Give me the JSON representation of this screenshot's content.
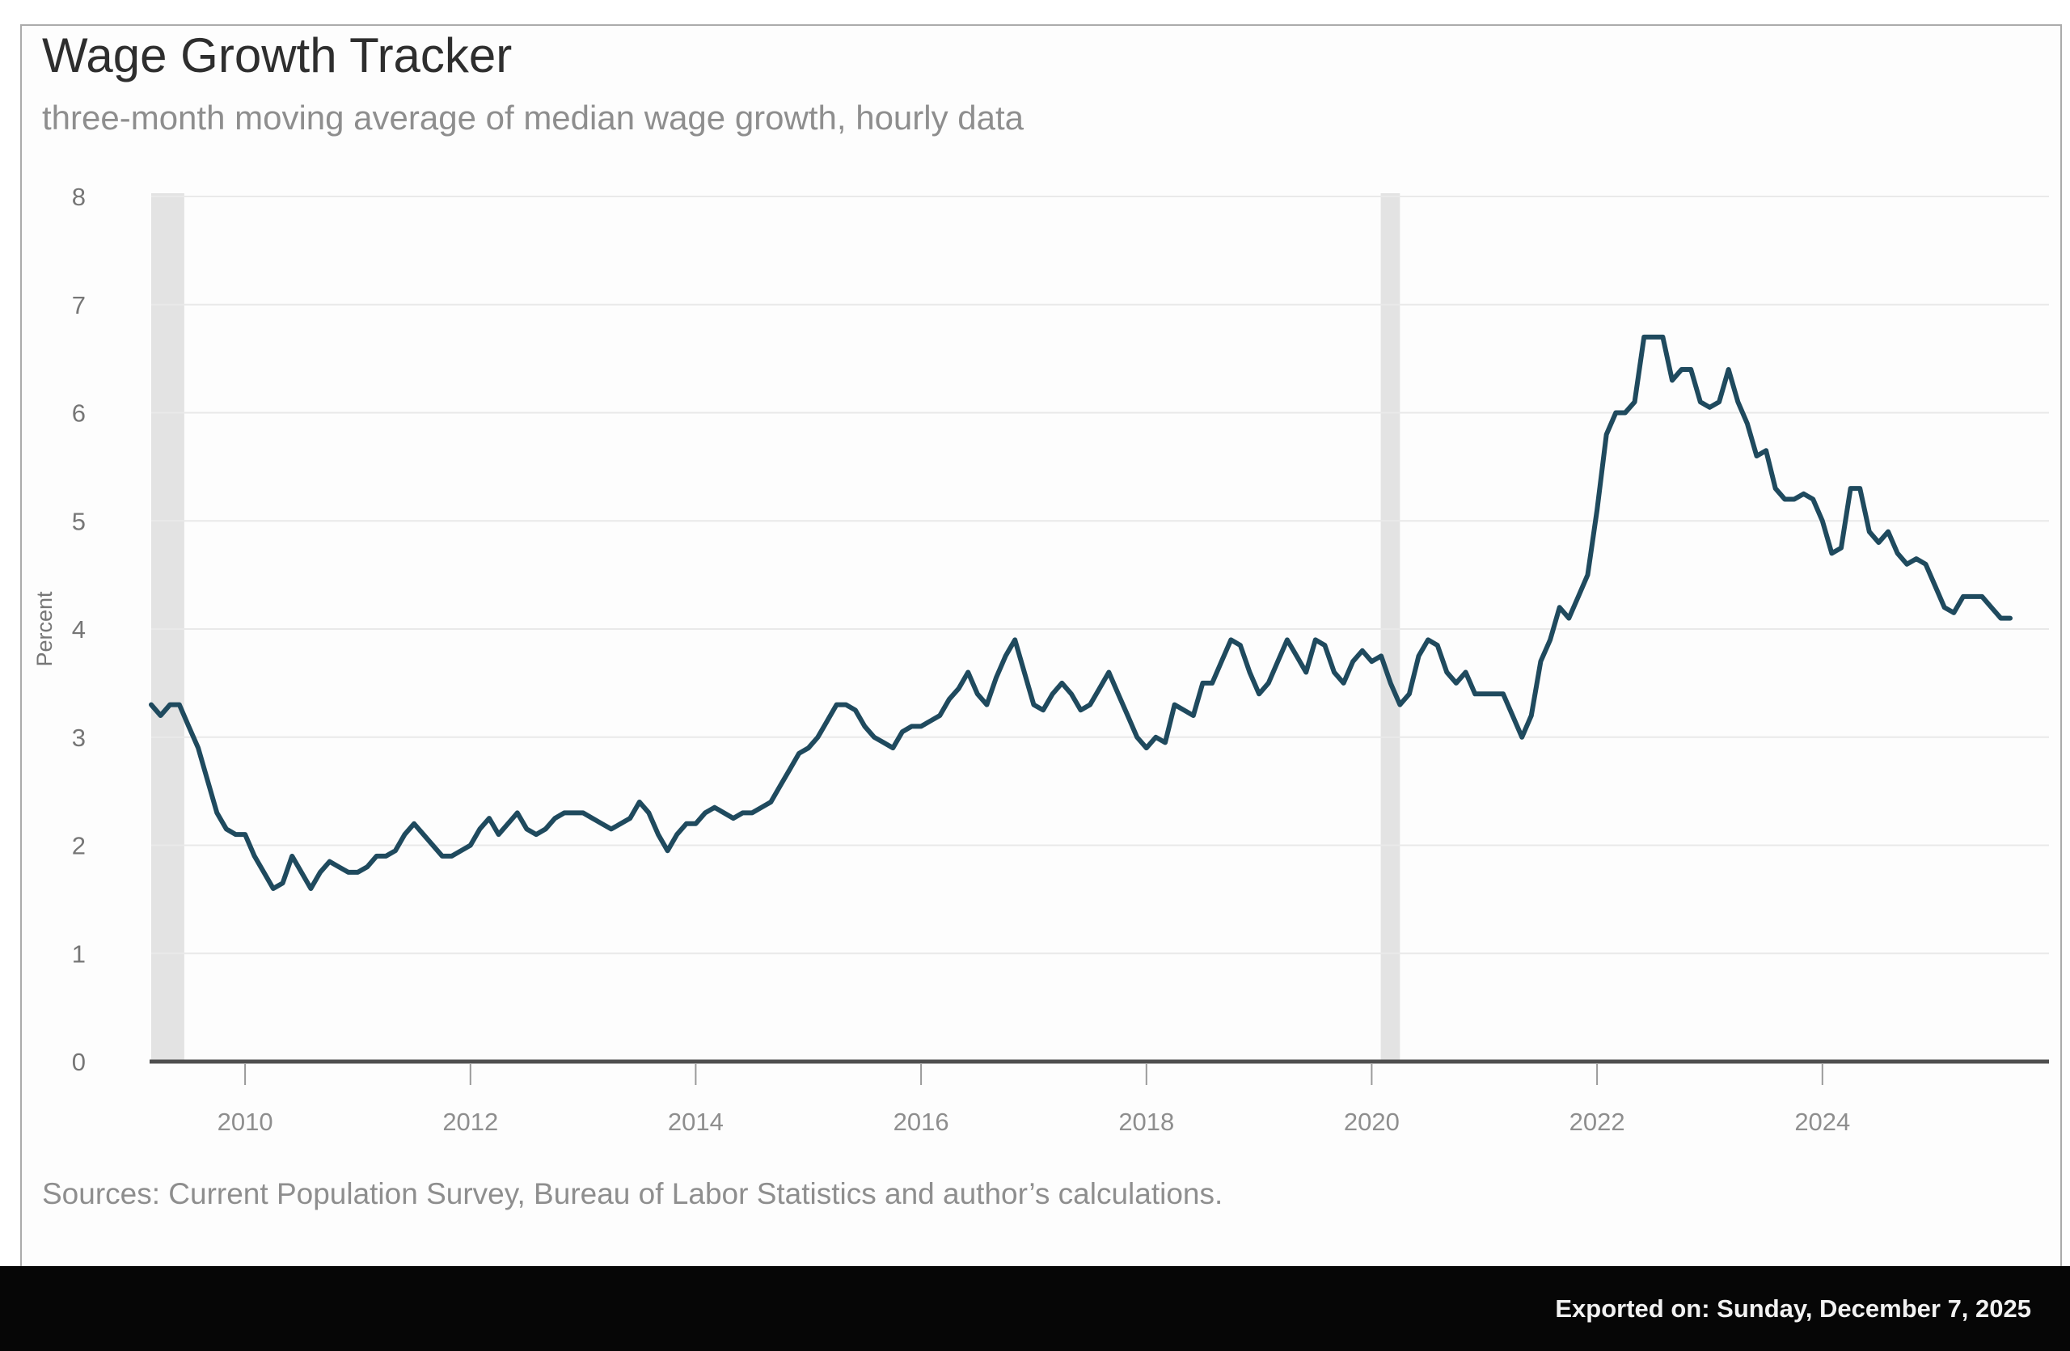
{
  "card": {
    "title": "Wage Growth Tracker",
    "subtitle": "three-month moving average of median wage growth, hourly data",
    "sources": "Sources: Current Population Survey, Bureau of Labor Statistics and author’s calculations."
  },
  "footer": {
    "exported_label": "Exported on: Sunday, December 7, 2025"
  },
  "chart_data": {
    "type": "line",
    "title": "Wage Growth Tracker",
    "subtitle": "three-month moving average of median wage growth, hourly data",
    "xlabel": "",
    "ylabel": "Percent",
    "ylim": [
      0,
      8
    ],
    "y_ticks": [
      0,
      1,
      2,
      3,
      4,
      5,
      6,
      7,
      8
    ],
    "x_ticks": [
      2010,
      2012,
      2014,
      2016,
      2018,
      2020,
      2022,
      2024
    ],
    "xlim": [
      2009.1667,
      2025.6667
    ],
    "grid": "horizontal-only",
    "legend": "none",
    "recession_bands": [
      {
        "from": 2009.1667,
        "to": 2009.46
      },
      {
        "from": 2020.08,
        "to": 2020.25
      }
    ],
    "series": [
      {
        "name": "Median wage growth, hourly workers (3-month moving average, percent)",
        "start": "2009-03",
        "frequency": "monthly",
        "values": [
          3.3,
          3.2,
          3.3,
          3.3,
          3.1,
          2.9,
          2.6,
          2.3,
          2.15,
          2.1,
          2.1,
          1.9,
          1.75,
          1.6,
          1.65,
          1.9,
          1.75,
          1.6,
          1.75,
          1.85,
          1.8,
          1.75,
          1.75,
          1.8,
          1.9,
          1.9,
          1.95,
          2.1,
          2.2,
          2.1,
          2.0,
          1.9,
          1.9,
          1.95,
          2.0,
          2.15,
          2.25,
          2.1,
          2.2,
          2.3,
          2.15,
          2.1,
          2.15,
          2.25,
          2.3,
          2.3,
          2.3,
          2.25,
          2.2,
          2.15,
          2.2,
          2.25,
          2.4,
          2.3,
          2.1,
          1.95,
          2.1,
          2.2,
          2.2,
          2.3,
          2.35,
          2.3,
          2.25,
          2.3,
          2.3,
          2.35,
          2.4,
          2.55,
          2.7,
          2.85,
          2.9,
          3.0,
          3.15,
          3.3,
          3.3,
          3.25,
          3.1,
          3.0,
          2.95,
          2.9,
          3.05,
          3.1,
          3.1,
          3.15,
          3.2,
          3.35,
          3.45,
          3.6,
          3.4,
          3.3,
          3.55,
          3.75,
          3.9,
          3.6,
          3.3,
          3.25,
          3.4,
          3.5,
          3.4,
          3.25,
          3.3,
          3.45,
          3.6,
          3.4,
          3.2,
          3.0,
          2.9,
          3.0,
          2.95,
          3.3,
          3.25,
          3.2,
          3.5,
          3.5,
          3.7,
          3.9,
          3.85,
          3.6,
          3.4,
          3.5,
          3.7,
          3.9,
          3.75,
          3.6,
          3.9,
          3.85,
          3.6,
          3.5,
          3.7,
          3.8,
          3.7,
          3.75,
          3.5,
          3.3,
          3.4,
          3.75,
          3.9,
          3.85,
          3.6,
          3.5,
          3.6,
          3.4,
          3.4,
          3.4,
          3.4,
          3.2,
          3.0,
          3.2,
          3.7,
          3.9,
          4.2,
          4.1,
          4.3,
          4.5,
          5.1,
          5.8,
          6.0,
          6.0,
          6.1,
          6.7,
          6.7,
          6.7,
          6.3,
          6.4,
          6.4,
          6.1,
          6.05,
          6.1,
          6.4,
          6.1,
          5.9,
          5.6,
          5.65,
          5.3,
          5.2,
          5.2,
          5.25,
          5.2,
          5.0,
          4.7,
          4.75,
          5.3,
          5.3,
          4.9,
          4.8,
          4.9,
          4.7,
          4.6,
          4.65,
          4.6,
          4.4,
          4.2,
          4.15,
          4.3,
          4.3,
          4.3,
          4.2,
          4.1,
          4.1
        ]
      }
    ],
    "colors": {
      "line": "#1f4a5e",
      "band": "#e3e3e3",
      "grid": "#e9e9e9",
      "axis": "#4f4f4f",
      "tick": "#9a9a9a",
      "tick_label": "#8e8e8e",
      "value_label": "#767676",
      "footer_bg": "#060606",
      "footer_text": "#f2f2f2"
    }
  }
}
